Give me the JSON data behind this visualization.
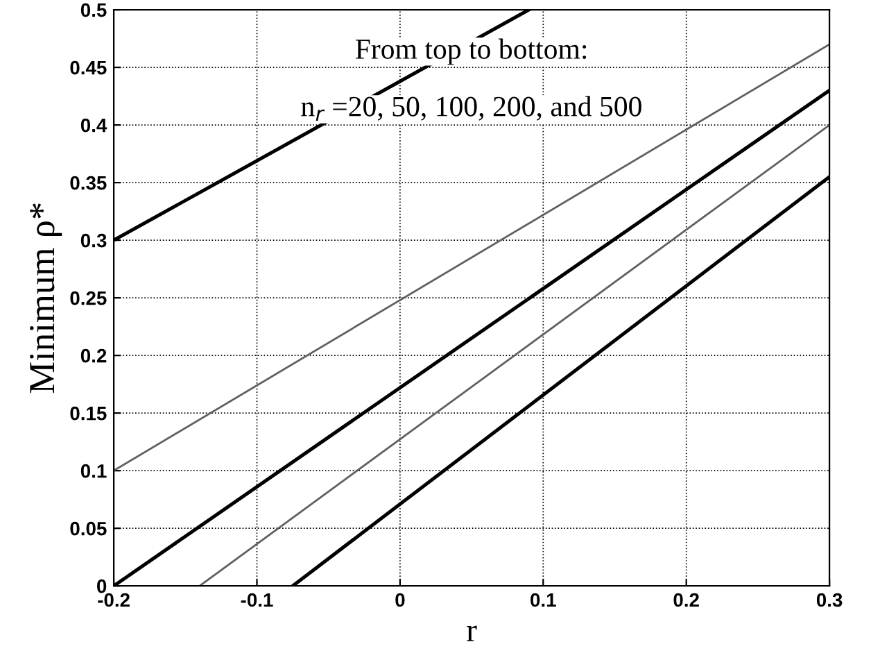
{
  "chart_data": {
    "type": "line",
    "xlabel": "r",
    "ylabel": "Minimum ρ*",
    "annotations": [
      "From top to bottom:",
      "n$_{r}$ =20, 50, 100, 200, and 500"
    ],
    "series": [
      {
        "color": "#000000",
        "x": [
          -0.2,
          0.09
        ],
        "values": [
          0.3,
          0.5
        ]
      },
      {
        "color": "#606060",
        "x": [
          -0.2,
          0.3
        ],
        "values": [
          0.1,
          0.47
        ]
      },
      {
        "color": "#000000",
        "x": [
          -0.2,
          0.3
        ],
        "values": [
          0,
          0.43
        ]
      },
      {
        "color": "#606060",
        "x": [
          -0.14,
          0.3
        ],
        "values": [
          0,
          0.4
        ]
      },
      {
        "color": "#000000",
        "x": [
          -0.075,
          0.3
        ],
        "values": [
          0,
          0.355
        ]
      }
    ],
    "xlim": [
      -0.2,
      0.3
    ],
    "xticks": [
      -0.2,
      -0.1,
      0,
      0.1,
      0.2,
      0.3
    ],
    "ylim": [
      0,
      0.5
    ],
    "yticks": [
      0,
      0.05,
      0.1,
      0.15,
      0.2,
      0.25,
      0.3,
      0.35,
      0.4,
      0.45,
      0.5
    ],
    "grid": true,
    "line_style": "solid"
  }
}
